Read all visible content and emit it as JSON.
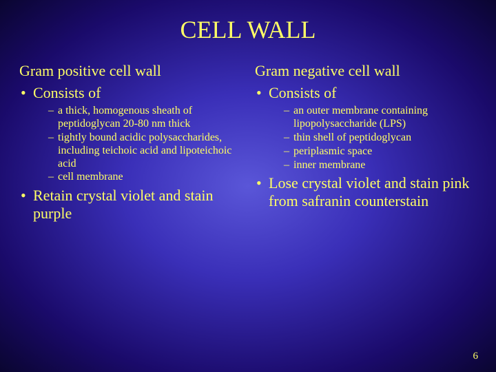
{
  "title": "CELL WALL",
  "page_number": "6",
  "colors": {
    "text": "#ffff66",
    "bg_center": "#5a56d8",
    "bg_mid": "#3a2fb8",
    "bg_outer": "#1a0a6a",
    "bg_corner": "#0a0530"
  },
  "typography": {
    "title_fontsize_pt": 36,
    "subhead_fontsize_pt": 22,
    "level1_fontsize_pt": 22,
    "level2_fontsize_pt": 16,
    "font_family": "Times New Roman"
  },
  "left": {
    "heading": "Gram positive cell wall",
    "consists_label": "Consists of",
    "sub": [
      "a thick, homogenous sheath of peptidoglycan 20-80 nm thick",
      "tightly bound acidic polysaccharides, including teichoic acid and lipoteichoic acid",
      "cell membrane"
    ],
    "tail": "Retain crystal violet and stain purple"
  },
  "right": {
    "heading": "Gram negative cell wall",
    "consists_label": "Consists of",
    "sub": [
      "an outer membrane containing lipopolysaccharide (LPS)",
      "thin shell of peptidoglycan",
      "periplasmic space",
      "inner membrane"
    ],
    "tail": "Lose crystal violet and stain pink from safranin counterstain"
  }
}
